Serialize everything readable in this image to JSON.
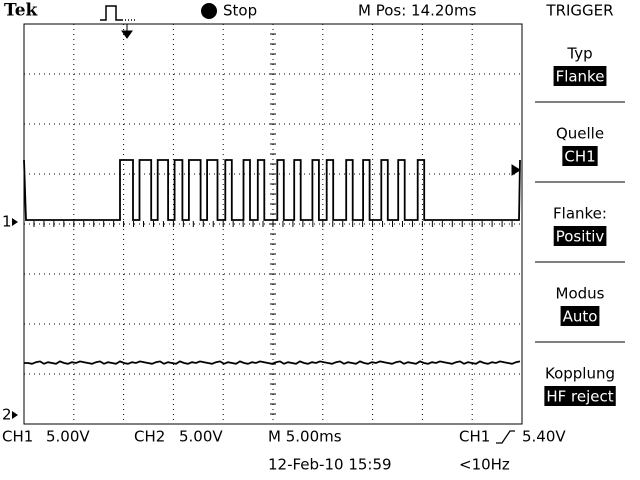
{
  "header": {
    "brand": "Tek",
    "status": "Stop",
    "position": "M Pos: 14.20ms",
    "menu_title": "TRIGGER"
  },
  "menu": [
    {
      "label": "Typ",
      "value": "Flanke"
    },
    {
      "label": "Quelle",
      "value": "CH1"
    },
    {
      "label": "Flanke:",
      "value": "Positiv"
    },
    {
      "label": "Modus",
      "value": "Auto"
    },
    {
      "label": "Kopplung",
      "value": "HF reject"
    }
  ],
  "markers": {
    "ch1": "1",
    "ch2": "2"
  },
  "footer": {
    "ch1_name": "CH1",
    "ch1_scale": "5.00V",
    "ch2_name": "CH2",
    "ch2_scale": "5.00V",
    "timebase": "M 5.00ms",
    "trigger_source": "CH1",
    "trigger_level": "5.40V",
    "datetime": "12-Feb-10 15:59",
    "frequency": "<10Hz"
  }
}
